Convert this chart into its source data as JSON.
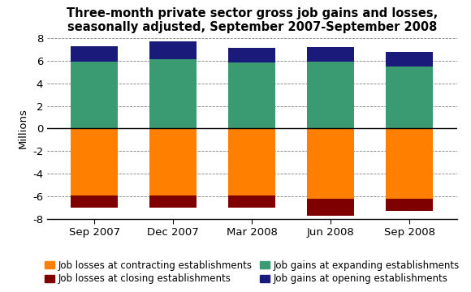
{
  "categories": [
    "Sep 2007",
    "Dec 2007",
    "Mar 2008",
    "Jun 2008",
    "Sep 2008"
  ],
  "job_gains_expanding": [
    5.9,
    6.1,
    5.8,
    5.9,
    5.5
  ],
  "job_gains_opening": [
    1.4,
    1.6,
    1.3,
    1.3,
    1.3
  ],
  "job_losses_contracting": [
    -5.9,
    -5.9,
    -5.9,
    -6.2,
    -6.2
  ],
  "job_losses_closing": [
    -1.1,
    -1.1,
    -1.1,
    -1.5,
    -1.1
  ],
  "color_expanding": "#3a9a72",
  "color_opening": "#1a1a7a",
  "color_contracting": "#ff7f00",
  "color_closing": "#7f0000",
  "title_line1": "Three-month private sector gross job gains and losses,",
  "title_line2": "seasonally adjusted, September 2007-September 2008",
  "ylabel": "Millions",
  "ylim": [
    -8,
    8
  ],
  "yticks": [
    -8,
    -6,
    -4,
    -2,
    0,
    2,
    4,
    6,
    8
  ],
  "legend_labels": [
    "Job losses at contracting establishments",
    "Job losses at closing establishments",
    "Job gains at expanding establishments",
    "Job gains at opening establishments"
  ],
  "background_color": "#ffffff",
  "title_fontsize": 10.5,
  "axis_fontsize": 9.5,
  "legend_fontsize": 8.5
}
